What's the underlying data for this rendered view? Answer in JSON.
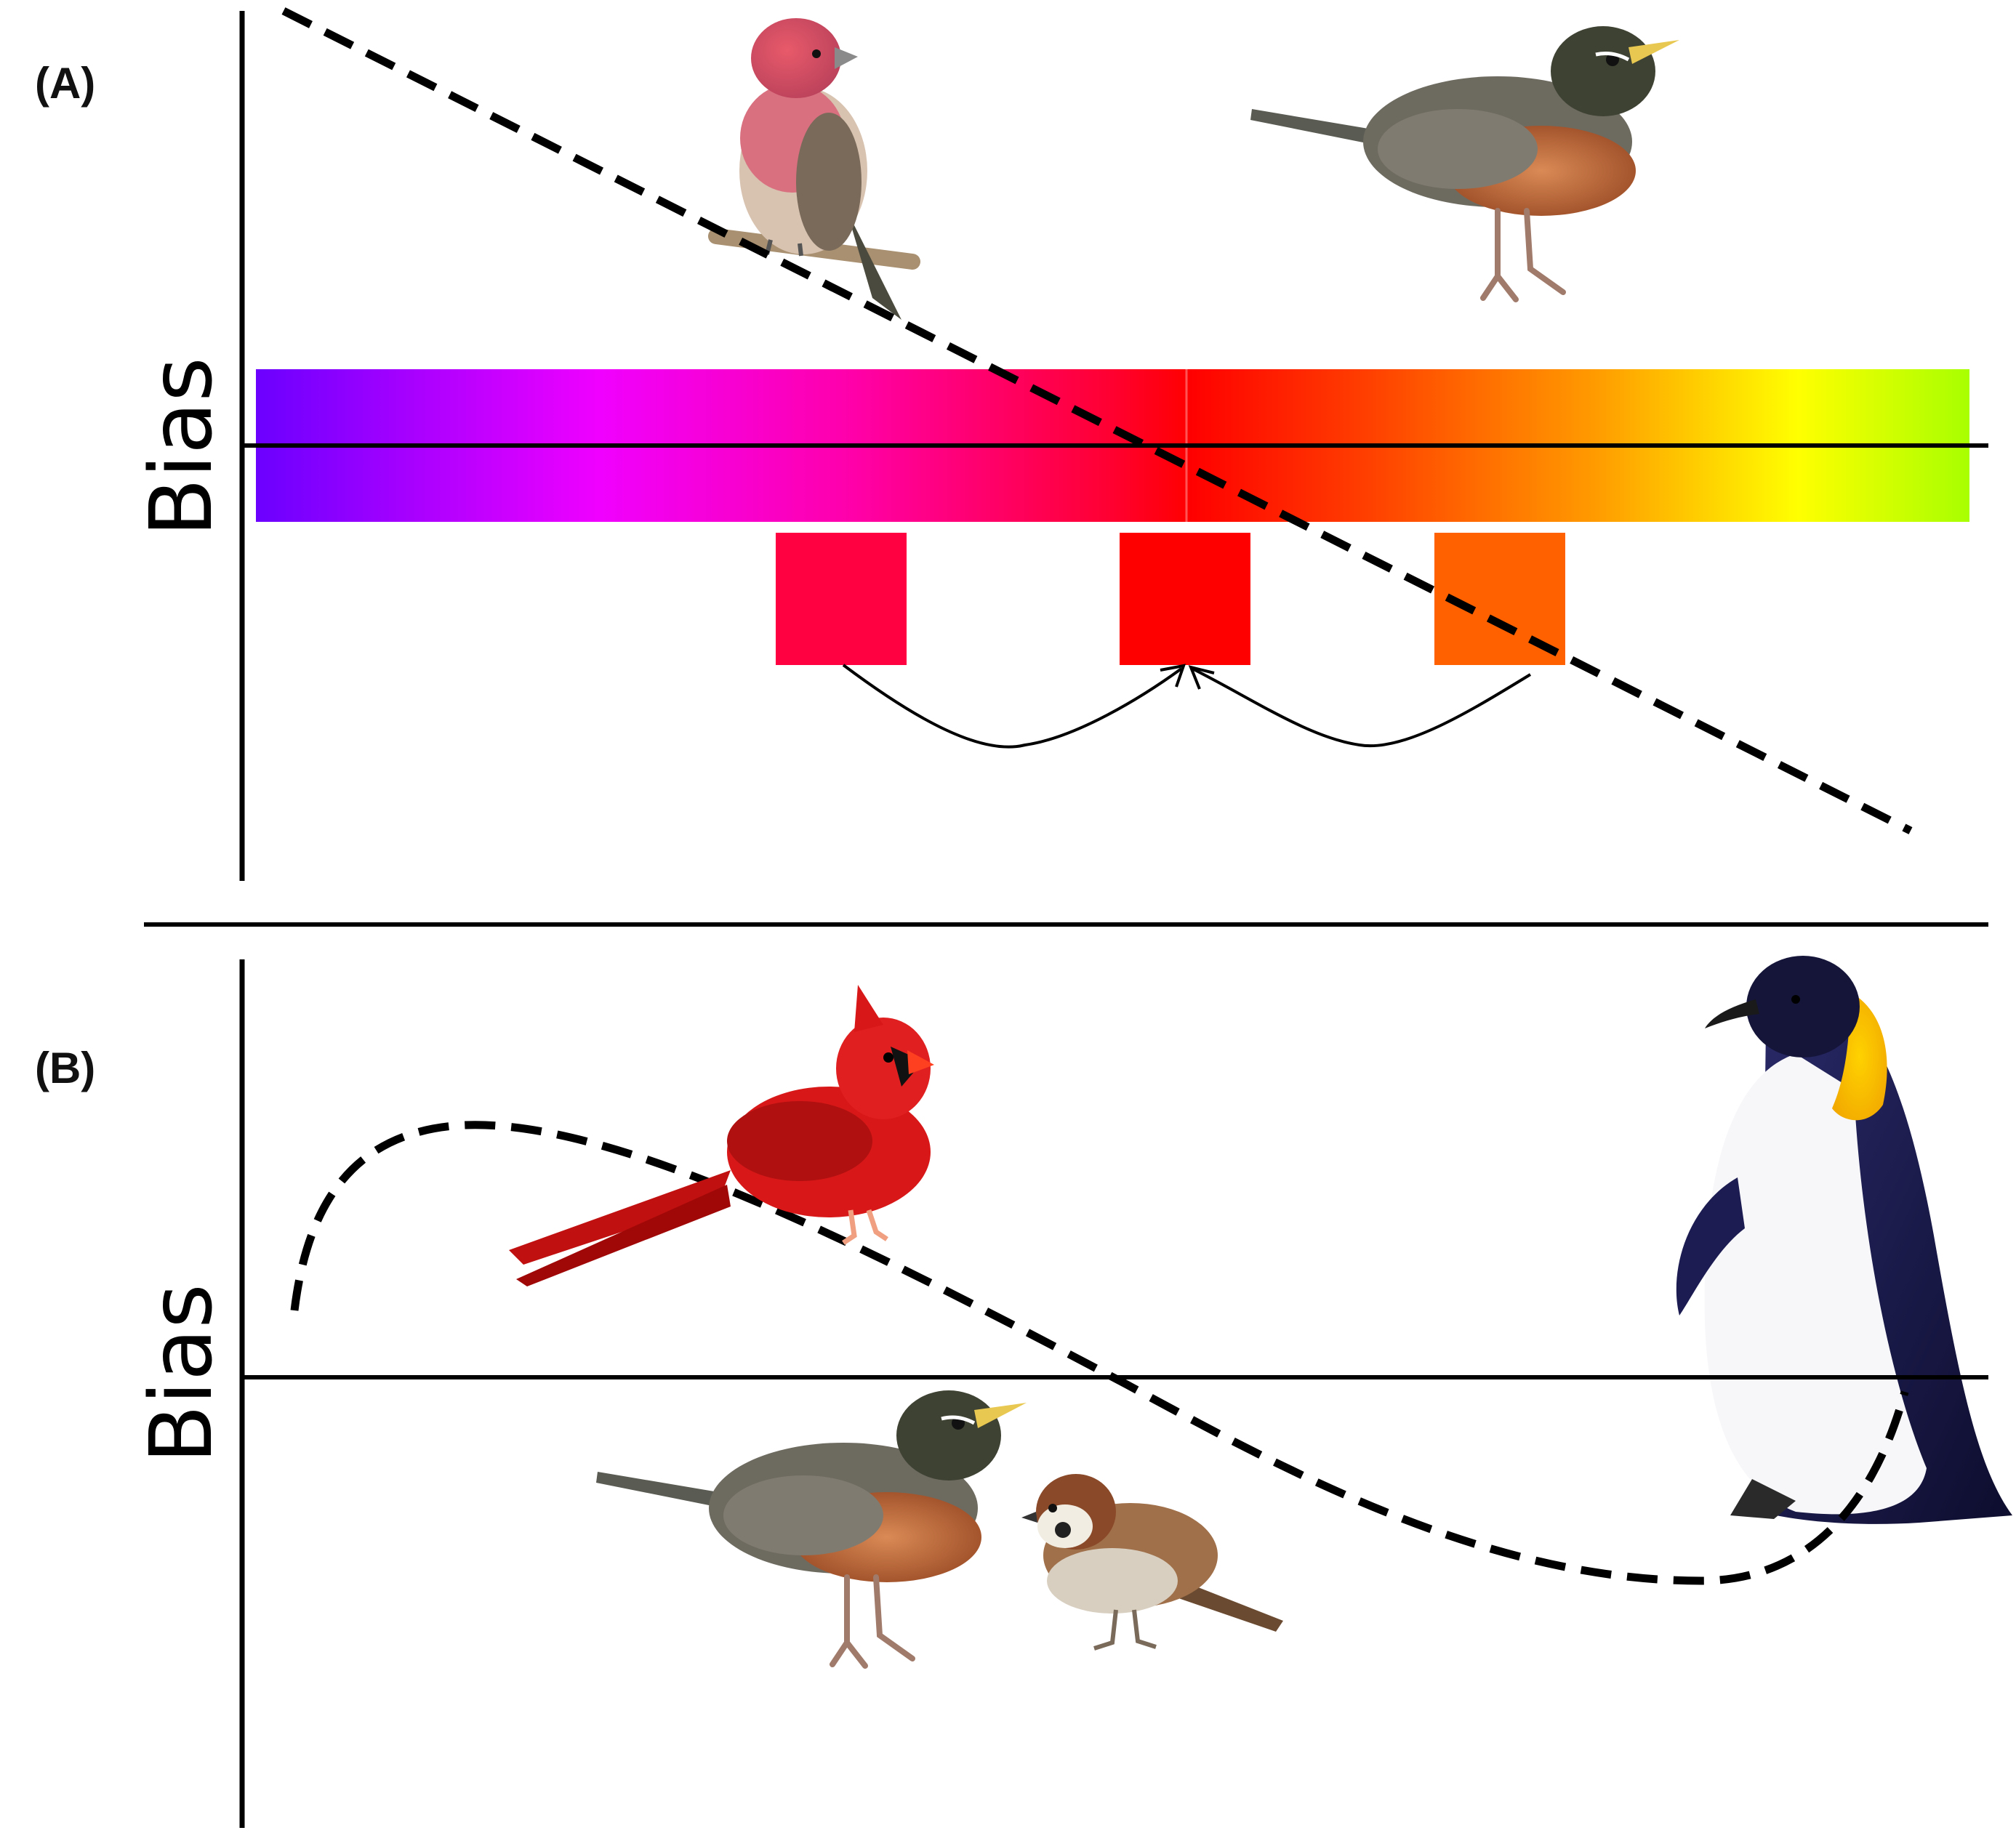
{
  "panels": {
    "a": {
      "label": "(A)",
      "axis_title": "Bias",
      "birds": [
        "house-finch",
        "american-robin"
      ],
      "color_swatches": [
        "#ff0040",
        "#ff0000",
        "#ff6000"
      ]
    },
    "b": {
      "label": "(B)",
      "axis_title": "Bias",
      "birds": [
        "northern-cardinal",
        "american-robin",
        "tree-sparrow",
        "emperor-penguin"
      ]
    }
  },
  "colors": {
    "spectrum": [
      "#6b00ff",
      "#e600ff",
      "#ff00d8",
      "#ff0066",
      "#ff0000",
      "#ff5500",
      "#ffb300",
      "#ffff00",
      "#aaff00"
    ],
    "line": "#000000"
  }
}
